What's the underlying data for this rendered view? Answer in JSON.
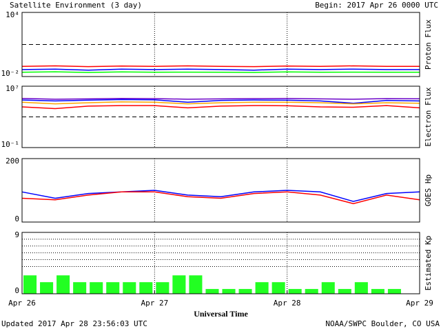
{
  "title": "Satellite Environment (3 day)",
  "begin": "Begin:  2017 Apr 26 0000 UTC",
  "updated": "Updated 2017 Apr 28 23:56:03 UTC",
  "credit": "NOAA/SWPC Boulder, CO USA",
  "chart_data": [
    {
      "type": "line",
      "ylabel": "Proton Flux",
      "log": true,
      "xlim": [
        0,
        72
      ],
      "xgrid": [
        24,
        48
      ],
      "ylim": [
        0.01,
        10000
      ],
      "yticks": [
        {
          "value": 10000,
          "label": "10⁴"
        },
        {
          "value": 0.01,
          "label": "10⁻²"
        }
      ],
      "threshold": 10,
      "x": [
        0,
        6,
        12,
        18,
        24,
        30,
        36,
        42,
        48,
        54,
        60,
        66,
        72
      ],
      "series": [
        {
          "color": "#ff0000",
          "values": [
            0.09,
            0.1,
            0.085,
            0.095,
            0.09,
            0.1,
            0.09,
            0.085,
            0.095,
            0.09,
            0.1,
            0.09,
            0.09
          ]
        },
        {
          "color": "#0000ff",
          "values": [
            0.045,
            0.05,
            0.04,
            0.05,
            0.045,
            0.05,
            0.045,
            0.04,
            0.05,
            0.045,
            0.05,
            0.045,
            0.045
          ]
        },
        {
          "color": "#00ff00",
          "values": [
            0.025,
            0.028,
            0.024,
            0.027,
            0.025,
            0.026,
            0.025,
            0.024,
            0.027,
            0.025,
            0.026,
            0.025,
            0.025
          ]
        }
      ]
    },
    {
      "type": "line",
      "ylabel": "Electron Flux",
      "log": true,
      "xlim": [
        0,
        72
      ],
      "xgrid": [
        24,
        48
      ],
      "ylim": [
        0.1,
        10000000
      ],
      "yticks": [
        {
          "value": 10000000,
          "label": "10⁷"
        },
        {
          "value": 0.1,
          "label": "10⁻¹"
        }
      ],
      "threshold": 1000,
      "x": [
        0,
        6,
        12,
        18,
        24,
        30,
        36,
        42,
        48,
        54,
        60,
        66,
        72
      ],
      "series": [
        {
          "color": "#6a00c8",
          "values": [
            250000,
            200000,
            220000,
            250000,
            240000,
            200000,
            220000,
            240000,
            250000,
            220000,
            200000,
            240000,
            230000
          ]
        },
        {
          "color": "#0000ff",
          "values": [
            160000,
            120000,
            150000,
            180000,
            170000,
            80000,
            140000,
            160000,
            150000,
            120000,
            60000,
            140000,
            120000
          ]
        },
        {
          "color": "#ffa500",
          "values": [
            80000,
            50000,
            70000,
            90000,
            80000,
            50000,
            70000,
            80000,
            80000,
            70000,
            50000,
            70000,
            60000
          ]
        },
        {
          "color": "#ff0000",
          "values": [
            20000,
            12000,
            25000,
            30000,
            30000,
            15000,
            25000,
            30000,
            28000,
            20000,
            18000,
            30000,
            15000
          ]
        }
      ]
    },
    {
      "type": "line",
      "ylabel": "GOES Hp",
      "xlim": [
        0,
        72
      ],
      "xgrid": [
        24,
        48
      ],
      "ylim": [
        0,
        200
      ],
      "yticks": [
        200,
        0
      ],
      "x": [
        0,
        6,
        12,
        18,
        24,
        30,
        36,
        42,
        48,
        54,
        60,
        66,
        72
      ],
      "series": [
        {
          "color": "#0000ff",
          "values": [
            95,
            75,
            90,
            95,
            100,
            85,
            80,
            95,
            100,
            95,
            65,
            90,
            95
          ]
        },
        {
          "color": "#ff0000",
          "values": [
            75,
            70,
            85,
            95,
            95,
            80,
            75,
            90,
            95,
            85,
            58,
            85,
            70
          ]
        }
      ]
    },
    {
      "type": "bar",
      "ylabel": "Estimated Kp",
      "xlabel": "Universal Time",
      "xlim": [
        0,
        72
      ],
      "xgrid": [
        24,
        48
      ],
      "xticks": [
        {
          "value": 0,
          "label": "Apr 26"
        },
        {
          "value": 24,
          "label": "Apr 27"
        },
        {
          "value": 48,
          "label": "Apr 28"
        },
        {
          "value": 72,
          "label": "Apr 29"
        }
      ],
      "ylim": [
        0,
        9
      ],
      "yticks": [
        9,
        0
      ],
      "grid": [
        4,
        5,
        6,
        7,
        8
      ],
      "color": "#22ff22",
      "x": [
        0,
        3,
        6,
        9,
        12,
        15,
        18,
        21,
        24,
        27,
        30,
        33,
        36,
        39,
        42,
        45,
        48,
        51,
        54,
        57,
        60,
        63,
        66,
        69
      ],
      "values": [
        2.7,
        1.7,
        2.7,
        1.7,
        1.7,
        1.7,
        1.7,
        1.7,
        1.7,
        2.7,
        2.7,
        0.7,
        0.7,
        0.7,
        1.7,
        1.7,
        0.7,
        0.7,
        1.7,
        0.7,
        1.7,
        0.7,
        0.7,
        null
      ]
    }
  ]
}
